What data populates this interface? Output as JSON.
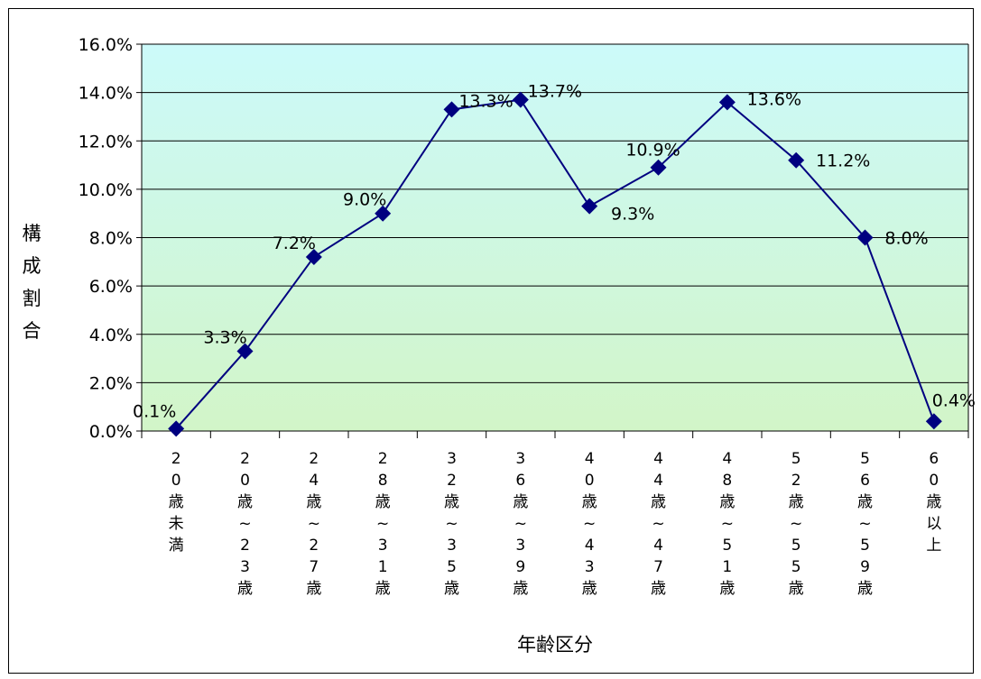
{
  "chart_data": {
    "type": "line",
    "title": "",
    "xlabel": "年齢区分",
    "ylabel": "構成割合",
    "ylim": [
      0,
      16
    ],
    "y_ticks": [
      "0.0%",
      "2.0%",
      "4.0%",
      "6.0%",
      "8.0%",
      "10.0%",
      "12.0%",
      "14.0%",
      "16.0%"
    ],
    "grid": "horizontal",
    "legend": "none",
    "categories": [
      "20歳未満",
      "20歳~23歳",
      "24歳~27歳",
      "28歳~31歳",
      "32歳~35歳",
      "36歳~39歳",
      "40歳~43歳",
      "44歳~47歳",
      "48歳~51歳",
      "52歳~55歳",
      "56歳~59歳",
      "60歳以上"
    ],
    "category_lines": [
      [
        "2",
        "0",
        "歳",
        "未",
        "満"
      ],
      [
        "2",
        "0",
        "歳",
        "~",
        "2",
        "3",
        "歳"
      ],
      [
        "2",
        "4",
        "歳",
        "~",
        "2",
        "7",
        "歳"
      ],
      [
        "2",
        "8",
        "歳",
        "~",
        "3",
        "1",
        "歳"
      ],
      [
        "3",
        "2",
        "歳",
        "~",
        "3",
        "5",
        "歳"
      ],
      [
        "3",
        "6",
        "歳",
        "~",
        "3",
        "9",
        "歳"
      ],
      [
        "4",
        "0",
        "歳",
        "~",
        "4",
        "3",
        "歳"
      ],
      [
        "4",
        "4",
        "歳",
        "~",
        "4",
        "7",
        "歳"
      ],
      [
        "4",
        "8",
        "歳",
        "~",
        "5",
        "1",
        "歳"
      ],
      [
        "5",
        "2",
        "歳",
        "~",
        "5",
        "5",
        "歳"
      ],
      [
        "5",
        "6",
        "歳",
        "~",
        "5",
        "9",
        "歳"
      ],
      [
        "6",
        "0",
        "歳",
        "以",
        "上"
      ]
    ],
    "series": [
      {
        "values": [
          0.1,
          3.3,
          7.2,
          9.0,
          13.3,
          13.7,
          9.3,
          10.9,
          13.6,
          11.2,
          8.0,
          0.4
        ],
        "data_labels": [
          "0.1%",
          "3.3%",
          "7.2%",
          "9.0%",
          "13.3%",
          "13.7%",
          "9.3%",
          "10.9%",
          "13.6%",
          "11.2%",
          "8.0%",
          "0.4%"
        ]
      }
    ],
    "colors": {
      "line": "#000080",
      "marker": "#000080",
      "plot_bg_top": "#ccfafa",
      "plot_bg_bottom": "#d2f5c8",
      "grid": "#000000"
    }
  }
}
